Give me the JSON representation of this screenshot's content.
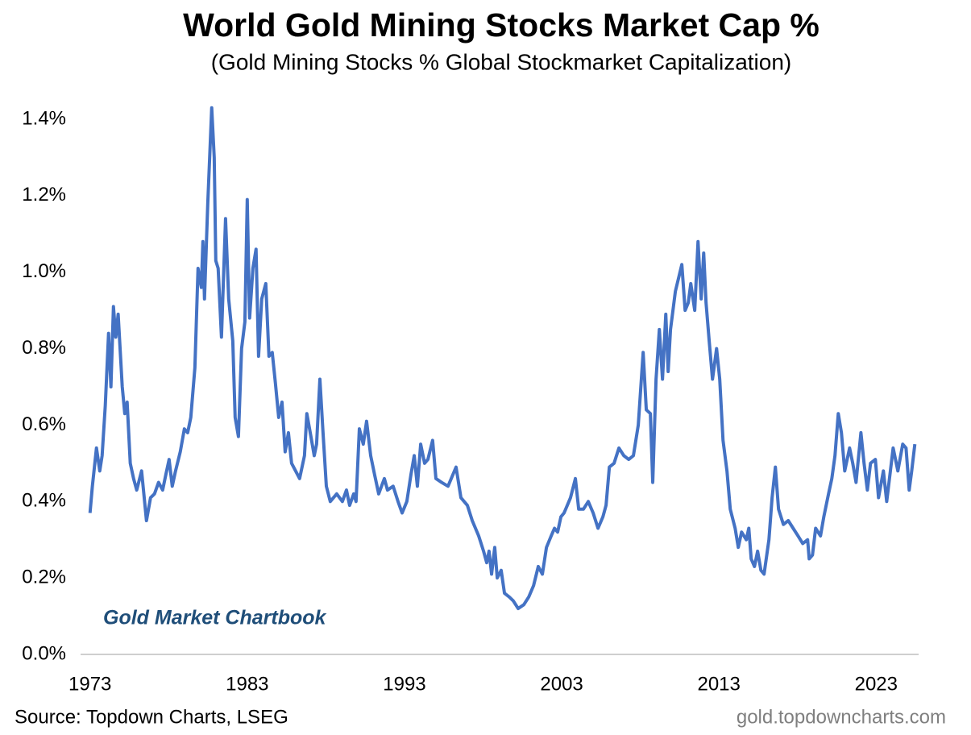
{
  "chart_data": {
    "type": "line",
    "title": "World Gold Mining Stocks Market Cap %",
    "subtitle": "(Gold Mining Stocks % Global Stockmarket Capitalization)",
    "annotation": "Gold Market Chartbook",
    "source": "Source: Topdown Charts, LSEG",
    "website": "gold.topdowncharts.com",
    "x": [
      1973.0,
      1973.15,
      1973.41,
      1973.62,
      1973.77,
      1973.97,
      1974.18,
      1974.33,
      1974.49,
      1974.64,
      1974.79,
      1975.05,
      1975.21,
      1975.36,
      1975.56,
      1975.77,
      1975.97,
      1976.28,
      1976.59,
      1976.85,
      1977.1,
      1977.36,
      1977.62,
      1977.82,
      1978.03,
      1978.23,
      1978.44,
      1978.74,
      1979.0,
      1979.21,
      1979.41,
      1979.67,
      1979.87,
      1980.08,
      1980.18,
      1980.28,
      1980.49,
      1980.74,
      1980.9,
      1981.0,
      1981.15,
      1981.36,
      1981.62,
      1981.82,
      1982.08,
      1982.23,
      1982.44,
      1982.64,
      1982.85,
      1983.0,
      1983.15,
      1983.36,
      1983.56,
      1983.72,
      1983.92,
      1984.18,
      1984.38,
      1984.59,
      1984.79,
      1985.0,
      1985.21,
      1985.41,
      1985.62,
      1985.82,
      1986.33,
      1986.64,
      1986.79,
      1987.05,
      1987.26,
      1987.41,
      1987.62,
      1987.82,
      1988.03,
      1988.28,
      1988.69,
      1989.05,
      1989.31,
      1989.51,
      1989.77,
      1989.92,
      1990.13,
      1990.38,
      1990.59,
      1990.85,
      1991.1,
      1991.36,
      1991.72,
      1991.92,
      1992.28,
      1992.59,
      1992.85,
      1993.15,
      1993.41,
      1993.62,
      1993.82,
      1994.03,
      1994.28,
      1994.49,
      1994.79,
      1995.0,
      1995.36,
      1995.77,
      1996.28,
      1996.59,
      1997.0,
      1997.31,
      1997.72,
      1998.03,
      1998.23,
      1998.38,
      1998.54,
      1998.74,
      1998.9,
      1999.15,
      1999.36,
      1999.67,
      1999.92,
      2000.23,
      2000.59,
      2000.9,
      2001.21,
      2001.51,
      2001.77,
      2002.03,
      2002.33,
      2002.54,
      2002.74,
      2002.95,
      2003.15,
      2003.56,
      2003.87,
      2004.08,
      2004.38,
      2004.69,
      2005.0,
      2005.31,
      2005.62,
      2005.82,
      2006.03,
      2006.33,
      2006.64,
      2006.95,
      2007.26,
      2007.56,
      2007.87,
      2008.18,
      2008.38,
      2008.64,
      2008.79,
      2009.0,
      2009.21,
      2009.41,
      2009.62,
      2009.77,
      2009.92,
      2010.23,
      2010.64,
      2010.85,
      2011.05,
      2011.21,
      2011.46,
      2011.67,
      2011.87,
      2012.03,
      2012.18,
      2012.38,
      2012.59,
      2012.85,
      2013.05,
      2013.26,
      2013.51,
      2013.72,
      2014.03,
      2014.23,
      2014.44,
      2014.74,
      2014.9,
      2015.05,
      2015.26,
      2015.46,
      2015.67,
      2015.87,
      2016.18,
      2016.38,
      2016.59,
      2016.79,
      2017.1,
      2017.41,
      2017.72,
      2018.03,
      2018.33,
      2018.64,
      2018.74,
      2018.95,
      2019.15,
      2019.46,
      2019.67,
      2019.97,
      2020.18,
      2020.38,
      2020.59,
      2020.79,
      2021.0,
      2021.31,
      2021.51,
      2021.72,
      2022.03,
      2022.23,
      2022.44,
      2022.64,
      2022.95,
      2023.15,
      2023.46,
      2023.67,
      2024.08,
      2024.38,
      2024.69,
      2024.9,
      2025.1,
      2025.26,
      2025.46
    ],
    "series": [
      {
        "color": "#4472c4",
        "values": [
          0.37,
          0.44,
          0.54,
          0.48,
          0.52,
          0.65,
          0.84,
          0.7,
          0.91,
          0.83,
          0.89,
          0.7,
          0.63,
          0.66,
          0.5,
          0.46,
          0.43,
          0.48,
          0.35,
          0.41,
          0.42,
          0.45,
          0.43,
          0.47,
          0.51,
          0.44,
          0.48,
          0.53,
          0.59,
          0.58,
          0.62,
          0.75,
          1.01,
          0.96,
          1.08,
          0.93,
          1.18,
          1.43,
          1.3,
          1.03,
          1.01,
          0.83,
          1.14,
          0.93,
          0.82,
          0.62,
          0.57,
          0.8,
          0.87,
          1.19,
          0.88,
          1.01,
          1.06,
          0.78,
          0.93,
          0.97,
          0.78,
          0.79,
          0.71,
          0.62,
          0.66,
          0.53,
          0.58,
          0.5,
          0.46,
          0.52,
          0.63,
          0.57,
          0.52,
          0.55,
          0.72,
          0.58,
          0.44,
          0.4,
          0.42,
          0.4,
          0.43,
          0.39,
          0.42,
          0.4,
          0.59,
          0.55,
          0.61,
          0.52,
          0.47,
          0.42,
          0.46,
          0.43,
          0.44,
          0.4,
          0.37,
          0.4,
          0.47,
          0.52,
          0.44,
          0.55,
          0.5,
          0.51,
          0.56,
          0.46,
          0.45,
          0.44,
          0.49,
          0.41,
          0.39,
          0.35,
          0.31,
          0.27,
          0.24,
          0.27,
          0.21,
          0.28,
          0.2,
          0.22,
          0.16,
          0.15,
          0.14,
          0.12,
          0.13,
          0.15,
          0.18,
          0.23,
          0.21,
          0.28,
          0.31,
          0.33,
          0.32,
          0.36,
          0.37,
          0.41,
          0.46,
          0.38,
          0.38,
          0.4,
          0.37,
          0.33,
          0.36,
          0.39,
          0.49,
          0.5,
          0.54,
          0.52,
          0.51,
          0.52,
          0.6,
          0.79,
          0.64,
          0.63,
          0.45,
          0.72,
          0.85,
          0.72,
          0.89,
          0.74,
          0.85,
          0.95,
          1.02,
          0.9,
          0.92,
          0.97,
          0.9,
          1.08,
          0.93,
          1.05,
          0.92,
          0.82,
          0.72,
          0.8,
          0.72,
          0.56,
          0.48,
          0.38,
          0.33,
          0.28,
          0.32,
          0.3,
          0.33,
          0.25,
          0.23,
          0.27,
          0.22,
          0.21,
          0.3,
          0.41,
          0.49,
          0.38,
          0.34,
          0.35,
          0.33,
          0.31,
          0.29,
          0.3,
          0.25,
          0.26,
          0.33,
          0.31,
          0.36,
          0.42,
          0.46,
          0.52,
          0.63,
          0.58,
          0.48,
          0.54,
          0.5,
          0.45,
          0.58,
          0.5,
          0.43,
          0.5,
          0.51,
          0.41,
          0.48,
          0.4,
          0.54,
          0.48,
          0.55,
          0.54,
          0.43,
          0.48,
          0.55
        ]
      }
    ],
    "xlim": [
      1972.4,
      2025.7
    ],
    "xticks": [
      1973,
      1983,
      1993,
      2003,
      2013,
      2023
    ],
    "ylim": [
      0,
      1.4
    ],
    "yticks": [
      {
        "value": 0,
        "label": "0.0%"
      },
      {
        "value": 0.2,
        "label": "0.2%"
      },
      {
        "value": 0.4,
        "label": "0.4%"
      },
      {
        "value": 0.6,
        "label": "0.6%"
      },
      {
        "value": 0.8,
        "label": "0.8%"
      },
      {
        "value": 1.0,
        "label": "1.0%"
      },
      {
        "value": 1.2,
        "label": "1.2%"
      },
      {
        "value": 1.4,
        "label": "1.4%"
      }
    ]
  }
}
